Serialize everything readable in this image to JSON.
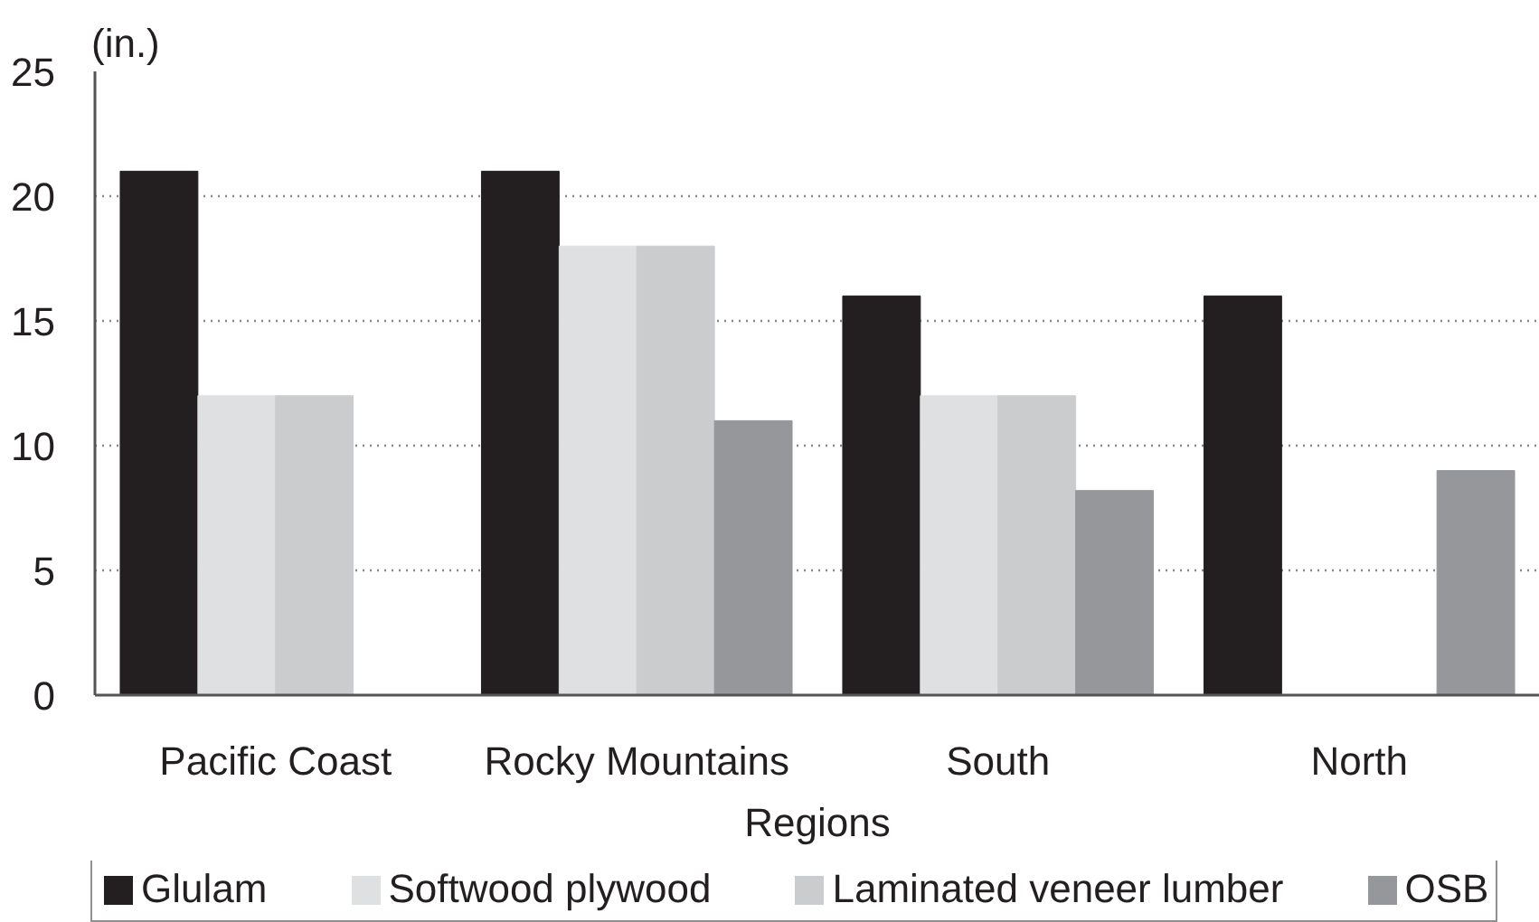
{
  "chart_data": {
    "type": "bar",
    "ylabel": "(in.)",
    "xlabel": "Regions",
    "categories": [
      "Pacific Coast",
      "Rocky Mountains",
      "South",
      "North"
    ],
    "series": [
      {
        "name": "Glulam",
        "color": "#231f20",
        "values": [
          21,
          21,
          16,
          16
        ]
      },
      {
        "name": "Softwood plywood",
        "color": "#dfe0e2",
        "values": [
          12,
          18,
          12,
          null
        ]
      },
      {
        "name": "Laminated veneer lumber",
        "color": "#cbccce",
        "values": [
          12,
          18,
          12,
          null
        ]
      },
      {
        "name": "OSB",
        "color": "#96979b",
        "values": [
          null,
          11,
          8.2,
          9
        ]
      }
    ],
    "ylim": [
      0,
      25
    ],
    "yticks": [
      0,
      5,
      10,
      15,
      20,
      25
    ],
    "grid": "y",
    "legend": "bottom"
  }
}
